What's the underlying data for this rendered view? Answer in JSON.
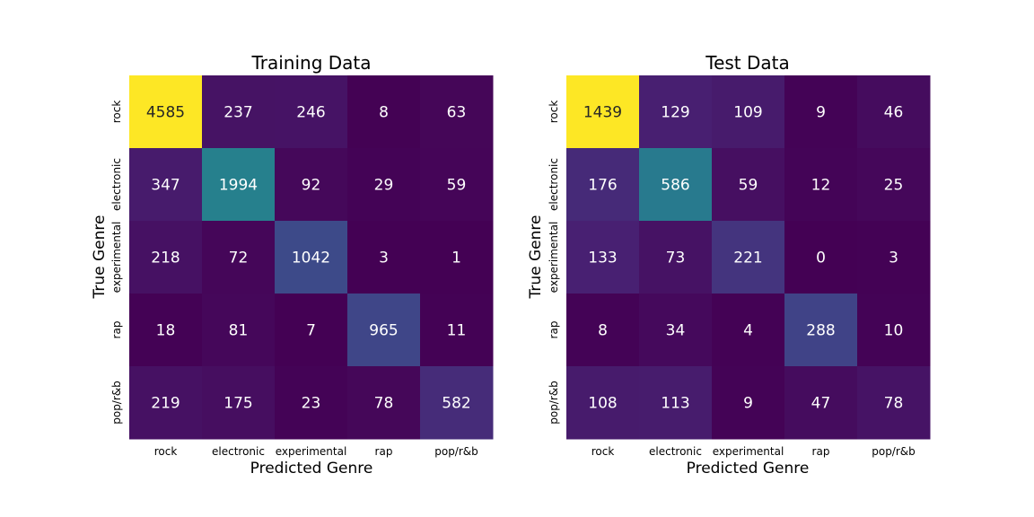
{
  "chart_data": [
    {
      "type": "heatmap",
      "title": "Training Data",
      "xlabel": "Predicted Genre",
      "ylabel": "True Genre",
      "x_categories": [
        "rock",
        "electronic",
        "experimental",
        "rap",
        "pop/r&b"
      ],
      "y_categories": [
        "rock",
        "electronic",
        "experimental",
        "rap",
        "pop/r&b"
      ],
      "values": [
        [
          4585,
          237,
          246,
          8,
          63
        ],
        [
          347,
          1994,
          92,
          29,
          59
        ],
        [
          218,
          72,
          1042,
          3,
          1
        ],
        [
          18,
          81,
          7,
          965,
          11
        ],
        [
          219,
          175,
          23,
          78,
          582
        ]
      ],
      "colormap": "viridis",
      "colorbar": false
    },
    {
      "type": "heatmap",
      "title": "Test Data",
      "xlabel": "Predicted Genre",
      "ylabel": "True Genre",
      "x_categories": [
        "rock",
        "electronic",
        "experimental",
        "rap",
        "pop/r&b"
      ],
      "y_categories": [
        "rock",
        "electronic",
        "experimental",
        "rap",
        "pop/r&b"
      ],
      "values": [
        [
          1439,
          129,
          109,
          9,
          46
        ],
        [
          176,
          586,
          59,
          12,
          25
        ],
        [
          133,
          73,
          221,
          0,
          3
        ],
        [
          8,
          34,
          4,
          288,
          10
        ],
        [
          108,
          113,
          9,
          47,
          78
        ]
      ],
      "colormap": "viridis",
      "colorbar": false
    }
  ]
}
